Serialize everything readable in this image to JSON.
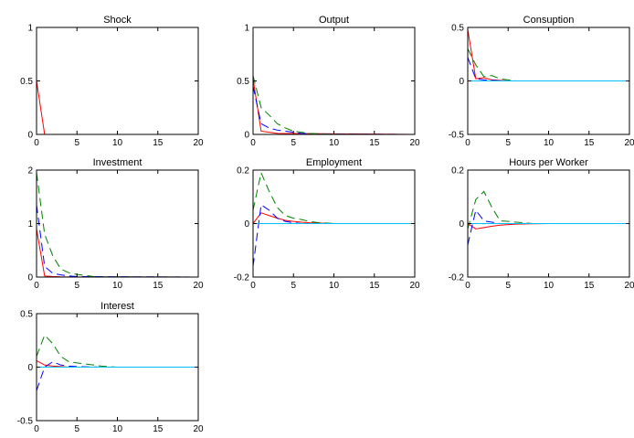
{
  "chart_data": [
    {
      "type": "line",
      "title": "Shock",
      "xlim": [
        0,
        20
      ],
      "ylim": [
        0,
        1
      ],
      "xticks": [
        0,
        5,
        10,
        15,
        20
      ],
      "yticks": [
        0,
        0.5,
        1
      ],
      "ytick_labels": [
        "0",
        "0.5",
        "1"
      ],
      "grid": false,
      "series": [
        {
          "color": "#ff0000",
          "dash": "solid",
          "x": [
            0,
            1,
            20
          ],
          "y": [
            0.5,
            0,
            0
          ]
        }
      ]
    },
    {
      "type": "line",
      "title": "Output",
      "xlim": [
        0,
        20
      ],
      "ylim": [
        0,
        1
      ],
      "xticks": [
        0,
        5,
        10,
        15,
        20
      ],
      "yticks": [
        0,
        0.5,
        1
      ],
      "ytick_labels": [
        "0",
        "0.5",
        "1"
      ],
      "grid": false,
      "series": [
        {
          "color": "#ff0000",
          "dash": "solid",
          "x": [
            0,
            1,
            2,
            3,
            20
          ],
          "y": [
            0.52,
            0.03,
            0.02,
            0.01,
            0
          ]
        },
        {
          "color": "#0000ff",
          "dash": "dashed",
          "x": [
            0,
            1,
            2,
            3,
            4,
            5,
            6,
            7,
            8,
            20
          ],
          "y": [
            0.45,
            0.1,
            0.06,
            0.04,
            0.03,
            0.02,
            0.01,
            0.005,
            0.003,
            0
          ]
        },
        {
          "color": "#008000",
          "dash": "dashed",
          "x": [
            0,
            1,
            2,
            3,
            4,
            5,
            6,
            7,
            8,
            9,
            10,
            20
          ],
          "y": [
            0.55,
            0.25,
            0.18,
            0.1,
            0.06,
            0.03,
            0.02,
            0.01,
            0.005,
            0.003,
            0.001,
            0
          ]
        },
        {
          "color": "#00bfff",
          "dash": "solid",
          "x": [
            0,
            20
          ],
          "y": [
            0,
            0
          ]
        }
      ]
    },
    {
      "type": "line",
      "title": "Consuption",
      "xlim": [
        0,
        20
      ],
      "ylim": [
        -0.5,
        0.5
      ],
      "xticks": [
        0,
        5,
        10,
        15,
        20
      ],
      "yticks": [
        -0.5,
        0,
        0.5
      ],
      "ytick_labels": [
        "-0.5",
        "0",
        "0.5"
      ],
      "grid": false,
      "series": [
        {
          "color": "#ff0000",
          "dash": "solid",
          "x": [
            0,
            1,
            2,
            3,
            4,
            5,
            20
          ],
          "y": [
            0.48,
            0.02,
            0.03,
            0.01,
            0.005,
            0,
            0
          ]
        },
        {
          "color": "#0000ff",
          "dash": "dashed",
          "x": [
            0,
            1,
            2,
            3,
            4,
            5,
            20
          ],
          "y": [
            0.22,
            0.02,
            0.01,
            0.005,
            0.002,
            0,
            0
          ]
        },
        {
          "color": "#008000",
          "dash": "dashed",
          "x": [
            0,
            1,
            2,
            3,
            4,
            5,
            6,
            20
          ],
          "y": [
            0.3,
            0.15,
            0.04,
            0.05,
            0.02,
            0.01,
            0,
            0
          ]
        },
        {
          "color": "#00bfff",
          "dash": "solid",
          "x": [
            0,
            20
          ],
          "y": [
            0,
            0
          ]
        }
      ]
    },
    {
      "type": "line",
      "title": "Investment",
      "xlim": [
        0,
        20
      ],
      "ylim": [
        0,
        2
      ],
      "xticks": [
        0,
        5,
        10,
        15,
        20
      ],
      "yticks": [
        0,
        1,
        2
      ],
      "ytick_labels": [
        "0",
        "1",
        "2"
      ],
      "grid": false,
      "series": [
        {
          "color": "#ff0000",
          "dash": "solid",
          "x": [
            0,
            1,
            2,
            3,
            20
          ],
          "y": [
            0.9,
            0.02,
            0.01,
            0.005,
            0
          ]
        },
        {
          "color": "#0000ff",
          "dash": "dashed",
          "x": [
            0,
            1,
            2,
            3,
            4,
            5,
            20
          ],
          "y": [
            1.35,
            0.2,
            0.07,
            0.04,
            0.02,
            0.01,
            0
          ]
        },
        {
          "color": "#008000",
          "dash": "dashed",
          "x": [
            0,
            1,
            2,
            3,
            4,
            5,
            6,
            7,
            8,
            20
          ],
          "y": [
            1.95,
            0.8,
            0.4,
            0.15,
            0.08,
            0.05,
            0.03,
            0.01,
            0.005,
            0
          ]
        },
        {
          "color": "#00bfff",
          "dash": "solid",
          "x": [
            0,
            20
          ],
          "y": [
            0,
            0
          ]
        }
      ]
    },
    {
      "type": "line",
      "title": "Employment",
      "xlim": [
        0,
        20
      ],
      "ylim": [
        -0.2,
        0.2
      ],
      "xticks": [
        0,
        5,
        10,
        15,
        20
      ],
      "yticks": [
        -0.2,
        0,
        0.2
      ],
      "ytick_labels": [
        "-0.2",
        "0",
        "0.2"
      ],
      "grid": false,
      "series": [
        {
          "color": "#ff0000",
          "dash": "solid",
          "x": [
            0,
            1,
            2,
            3,
            4,
            5,
            6,
            7,
            8,
            9,
            10,
            20
          ],
          "y": [
            0,
            0.04,
            0.03,
            0.02,
            0.012,
            0.008,
            0.005,
            0.003,
            0.002,
            0.001,
            0,
            0
          ]
        },
        {
          "color": "#0000ff",
          "dash": "dashed",
          "x": [
            0,
            1,
            2,
            3,
            4,
            5,
            6,
            20
          ],
          "y": [
            -0.16,
            0.07,
            0.05,
            0.02,
            0.008,
            0.003,
            0,
            0
          ]
        },
        {
          "color": "#008000",
          "dash": "dashed",
          "x": [
            0,
            1,
            2,
            3,
            4,
            5,
            6,
            7,
            8,
            9,
            10,
            20
          ],
          "y": [
            0.05,
            0.19,
            0.12,
            0.06,
            0.03,
            0.02,
            0.015,
            0.008,
            0.004,
            0.002,
            0,
            0
          ]
        },
        {
          "color": "#00bfff",
          "dash": "solid",
          "x": [
            0,
            20
          ],
          "y": [
            0,
            0
          ]
        }
      ]
    },
    {
      "type": "line",
      "title": "Hours per Worker",
      "xlim": [
        0,
        20
      ],
      "ylim": [
        -0.2,
        0.2
      ],
      "xticks": [
        0,
        5,
        10,
        15,
        20
      ],
      "yticks": [
        -0.2,
        0,
        0.2
      ],
      "ytick_labels": [
        "-0.2",
        "0",
        "0.2"
      ],
      "grid": false,
      "series": [
        {
          "color": "#ff0000",
          "dash": "solid",
          "x": [
            0,
            1,
            2,
            3,
            4,
            5,
            6,
            8,
            10,
            20
          ],
          "y": [
            0,
            -0.02,
            -0.015,
            -0.01,
            -0.006,
            -0.004,
            -0.002,
            -0.001,
            0,
            0
          ]
        },
        {
          "color": "#0000ff",
          "dash": "dashed",
          "x": [
            0,
            1,
            2,
            3,
            4,
            20
          ],
          "y": [
            -0.08,
            0.05,
            0.01,
            0.005,
            0,
            0
          ]
        },
        {
          "color": "#008000",
          "dash": "dashed",
          "x": [
            0,
            1,
            2,
            3,
            4,
            5,
            6,
            7,
            8,
            20
          ],
          "y": [
            -0.02,
            0.09,
            0.12,
            0.06,
            0.01,
            0.008,
            0.005,
            0.003,
            0,
            0
          ]
        },
        {
          "color": "#00bfff",
          "dash": "solid",
          "x": [
            0,
            20
          ],
          "y": [
            0,
            0
          ]
        }
      ]
    },
    {
      "type": "line",
      "title": "Interest",
      "xlim": [
        0,
        20
      ],
      "ylim": [
        -0.5,
        0.5
      ],
      "xticks": [
        0,
        5,
        10,
        15,
        20
      ],
      "yticks": [
        -0.5,
        0,
        0.5
      ],
      "ytick_labels": [
        "-0.5",
        "0",
        "0.5"
      ],
      "grid": false,
      "series": [
        {
          "color": "#ff0000",
          "dash": "solid",
          "x": [
            0,
            1,
            2,
            3,
            4,
            20
          ],
          "y": [
            0.06,
            0.02,
            0.01,
            0.005,
            0,
            0
          ]
        },
        {
          "color": "#0000ff",
          "dash": "dashed",
          "x": [
            0,
            1,
            2,
            3,
            4,
            5,
            6,
            7,
            8,
            20
          ],
          "y": [
            -0.22,
            0,
            0.05,
            0.02,
            0.01,
            0.005,
            0.003,
            0.002,
            0,
            0
          ]
        },
        {
          "color": "#008000",
          "dash": "dashed",
          "x": [
            0,
            1,
            2,
            3,
            4,
            5,
            6,
            7,
            8,
            9,
            10,
            20
          ],
          "y": [
            0.1,
            0.3,
            0.22,
            0.1,
            0.05,
            0.04,
            0.03,
            0.02,
            0.01,
            0.005,
            0,
            0
          ]
        },
        {
          "color": "#00bfff",
          "dash": "solid",
          "x": [
            0,
            20
          ],
          "y": [
            0,
            0
          ]
        }
      ]
    }
  ]
}
